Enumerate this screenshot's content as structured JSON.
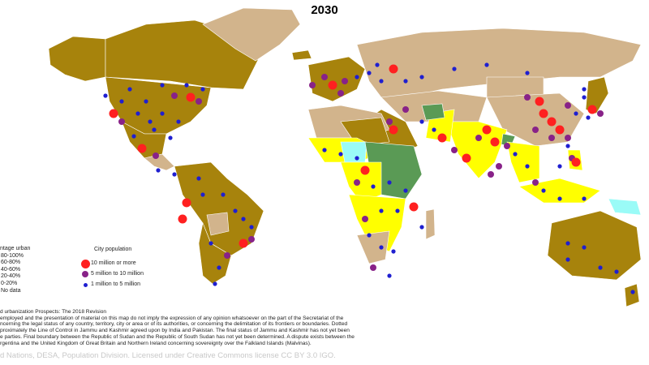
{
  "title": "2030",
  "colors": {
    "p80_100": "#a7830c",
    "p60_80": "#d2b48c",
    "p40_60": "#ffff00",
    "p20_40": "#5a9a55",
    "p0_20": "#9afbf7",
    "no_data": "#e8e8e8",
    "city_10m": "#ff2020",
    "city_5m": "#882288",
    "city_1m": "#1f1fd0"
  },
  "legend_percentage": {
    "header": "ntage urban",
    "items": [
      {
        "label": "80-100%",
        "color_key": "p80_100"
      },
      {
        "label": "60-80%",
        "color_key": "p60_80"
      },
      {
        "label": "40-60%",
        "color_key": "p40_60"
      },
      {
        "label": "20-40%",
        "color_key": "p20_40"
      },
      {
        "label": "0-20%",
        "color_key": "p0_20"
      },
      {
        "label": "No data",
        "color_key": "no_data"
      }
    ]
  },
  "legend_city": {
    "header": "City population",
    "items": [
      {
        "label": "10 million or more",
        "color_key": "city_10m"
      },
      {
        "label": "5 million to 10 million",
        "color_key": "city_5m"
      },
      {
        "label": "1 million to 5 million",
        "color_key": "city_1m"
      }
    ]
  },
  "notes": [
    "d urbanization Prospects: The 2018 Revision",
    "employed and the presentation of material on this map do not imply the expression of any opinion whatsoever on the part of the Secretariat of the",
    "ncerning the legal status of any country, territory, city or area or of its authorities, or concerning the delimitation of its frontiers or boundaries. Dotted",
    "proximately the Line of Control in Jammu and Kashmir agreed upon by India and Pakistan. The final status of Jammu and Kashmir has not yet been",
    "e parties. Final boundary between the Republic of Sudan and the Republic of South Sudan has not yet been determined. A dispute exists between the",
    "rgentina and the United Kingdom of Great Britain and Northern Ireland concerning sovereignty over the Falkland Islands (Malvinas)."
  ],
  "credit": "d Nations, DESA, Population Division. Licensed under Creative Commons license CC BY 3.0 IGO."
}
